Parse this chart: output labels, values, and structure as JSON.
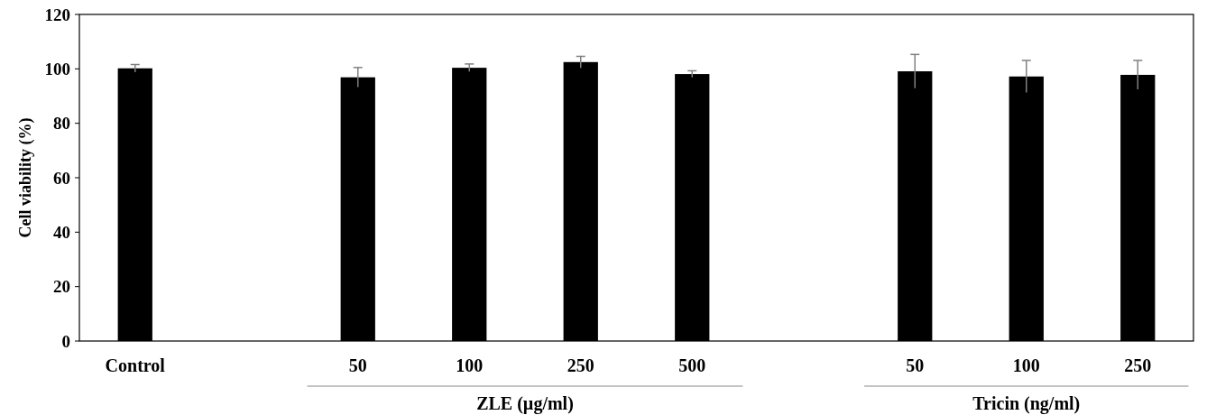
{
  "chart_data": {
    "type": "bar",
    "ylabel": "Cell viability (%)",
    "categories": [
      "Control",
      null,
      "50",
      "100",
      "250",
      "500",
      null,
      "50",
      "100",
      "250"
    ],
    "values": [
      100.2,
      null,
      96.9,
      100.4,
      102.5,
      98.1,
      null,
      99.1,
      97.2,
      97.8
    ],
    "errors": [
      1.4,
      null,
      3.6,
      1.4,
      2.1,
      1.2,
      null,
      6.2,
      5.9,
      5.3
    ],
    "color": "#000000",
    "ylim": [
      0,
      120
    ],
    "yticks": [
      0,
      20,
      40,
      60,
      80,
      100,
      120
    ],
    "grid": false,
    "annotations": [
      "ZLE (µg/ml)",
      "Tricin (ng/ml)"
    ]
  }
}
